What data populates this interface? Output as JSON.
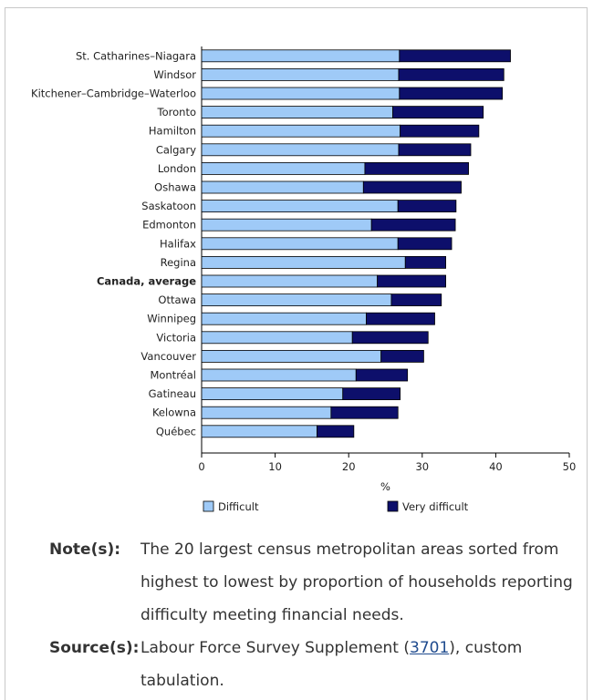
{
  "chart_data": {
    "type": "bar",
    "stacked": true,
    "orientation": "horizontal",
    "categories": [
      "St. Catharines–Niagara",
      "Windsor",
      "Kitchener–Cambridge–Waterloo",
      "Toronto",
      "Hamilton",
      "Calgary",
      "London",
      "Oshawa",
      "Saskatoon",
      "Edmonton",
      "Halifax",
      "Regina",
      "Canada, average",
      "Ottawa",
      "Winnipeg",
      "Victoria",
      "Vancouver",
      "Montréal",
      "Gatineau",
      "Kelowna",
      "Québec"
    ],
    "highlight_category": "Canada, average",
    "series": [
      {
        "name": "Difficult",
        "color": "#9fcaf7",
        "values": [
          26.9,
          26.8,
          26.9,
          26.0,
          27.0,
          26.8,
          22.2,
          22.0,
          26.7,
          23.1,
          26.7,
          27.7,
          23.9,
          25.8,
          22.4,
          20.5,
          24.4,
          21.0,
          19.2,
          17.6,
          15.7
        ]
      },
      {
        "name": "Very difficult",
        "color": "#0d0f6b",
        "values": [
          15.1,
          14.3,
          14.0,
          12.3,
          10.7,
          9.8,
          14.1,
          13.3,
          7.9,
          11.4,
          7.3,
          5.5,
          9.3,
          6.8,
          9.3,
          10.3,
          5.8,
          7.0,
          7.8,
          9.1,
          5.0
        ]
      }
    ],
    "xlabel": "%",
    "xlim": [
      0,
      50
    ],
    "xticks": [
      0,
      10,
      20,
      30,
      40,
      50
    ],
    "grid": false,
    "legend_position": "bottom"
  },
  "notes": {
    "note_label": "Note(s):",
    "note_text": "The 20 largest census metropolitan areas sorted from highest to lowest by proportion of households reporting difficulty meeting financial needs.",
    "source_label": "Source(s):",
    "source_prefix": "Labour Force Survey Supplement (",
    "source_link": "3701",
    "source_suffix": "), custom tabulation."
  }
}
